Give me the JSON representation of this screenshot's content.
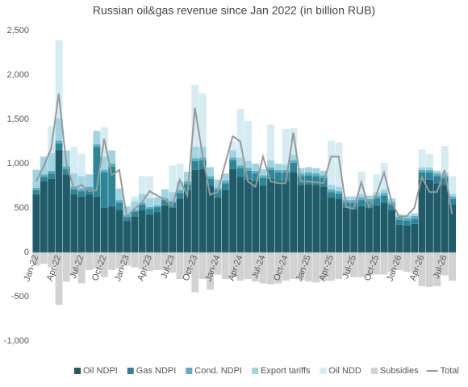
{
  "chart_data": {
    "type": "stacked-bar-line",
    "title": "Russian oil&gas revenue since Jan 2022 (in billion RUB)",
    "categories": [
      "Jan-22",
      null,
      null,
      "Apr-22",
      null,
      null,
      "Jul-22",
      null,
      null,
      "Oct-22",
      null,
      null,
      "Jan-23",
      null,
      null,
      "Apr-23",
      null,
      null,
      "Jul-23",
      null,
      null,
      "Oct-23",
      null,
      null,
      "Jan-24",
      null,
      null,
      "Apr-24",
      null,
      null,
      "Jul-24",
      null,
      null,
      "Oct-24",
      null,
      null,
      "Jan-25",
      null,
      null,
      "Apr-25",
      null,
      null,
      "Jul-25",
      null,
      null,
      "Oct-25",
      null,
      null,
      "Jan-26",
      null,
      null,
      "Apr-26",
      null,
      null,
      "Jul-26",
      null
    ],
    "ylim": [
      -1000,
      2500
    ],
    "yticks": [
      {
        "value": -1000,
        "label": "-1,000"
      },
      -500,
      0,
      500,
      {
        "value": 1000,
        "label": "1,000"
      },
      {
        "value": 1500,
        "label": "1,500"
      },
      {
        "value": 2000,
        "label": "2,000"
      },
      {
        "value": 2500,
        "label": "2,500"
      }
    ],
    "series": [
      {
        "name": "Oil NDPI",
        "color": "#1f5b68",
        "kind": "bar",
        "values": [
          650,
          800,
          830,
          1150,
          880,
          650,
          630,
          650,
          630,
          500,
          520,
          480,
          350,
          400,
          480,
          430,
          450,
          530,
          500,
          600,
          700,
          930,
          940,
          750,
          620,
          700,
          940,
          850,
          820,
          800,
          750,
          830,
          800,
          800,
          900,
          760,
          770,
          760,
          740,
          620,
          600,
          500,
          490,
          520,
          500,
          530,
          560,
          480,
          310,
          300,
          320,
          820,
          820,
          780,
          760,
          540
        ]
      },
      {
        "name": "Gas NDPI",
        "color": "#2d8697",
        "kind": "bar",
        "values": [
          50,
          50,
          60,
          80,
          60,
          60,
          60,
          60,
          560,
          400,
          450,
          80,
          50,
          60,
          60,
          60,
          60,
          60,
          60,
          70,
          70,
          100,
          100,
          80,
          80,
          80,
          100,
          100,
          100,
          90,
          90,
          100,
          100,
          100,
          110,
          100,
          100,
          100,
          100,
          60,
          60,
          60,
          70,
          70,
          70,
          80,
          80,
          60,
          60,
          60,
          60,
          80,
          80,
          80,
          80,
          60
        ]
      },
      {
        "name": "Cond. NDPI",
        "color": "#5badbf",
        "kind": "bar",
        "values": [
          30,
          30,
          30,
          30,
          30,
          30,
          30,
          30,
          30,
          30,
          30,
          30,
          20,
          20,
          20,
          20,
          20,
          20,
          20,
          30,
          30,
          30,
          30,
          30,
          30,
          30,
          30,
          30,
          30,
          30,
          30,
          30,
          30,
          30,
          30,
          30,
          30,
          30,
          30,
          30,
          30,
          30,
          30,
          30,
          30,
          30,
          30,
          30,
          30,
          30,
          30,
          30,
          30,
          30,
          30,
          30
        ]
      },
      {
        "name": "Export tariffs",
        "color": "#a0d4e1",
        "kind": "bar",
        "values": [
          200,
          200,
          200,
          250,
          180,
          150,
          140,
          140,
          150,
          150,
          150,
          130,
          100,
          100,
          100,
          100,
          90,
          100,
          100,
          100,
          110,
          130,
          120,
          100,
          90,
          80,
          80,
          90,
          80,
          80,
          70,
          80,
          70,
          60,
          60,
          60,
          60,
          60,
          50,
          50,
          50,
          40,
          40,
          40,
          40,
          40,
          40,
          40,
          30,
          30,
          30,
          30,
          30,
          30,
          30,
          30
        ]
      },
      {
        "name": "Oil NDD",
        "color": "#d4ecf2",
        "kind": "bar",
        "values": [
          0,
          0,
          300,
          880,
          0,
          300,
          250,
          0,
          0,
          330,
          0,
          0,
          0,
          50,
          200,
          250,
          0,
          0,
          300,
          200,
          0,
          700,
          600,
          0,
          0,
          0,
          100,
          550,
          450,
          0,
          0,
          400,
          0,
          400,
          300,
          0,
          0,
          0,
          0,
          500,
          500,
          0,
          0,
          250,
          0,
          200,
          300,
          0,
          0,
          0,
          0,
          200,
          150,
          0,
          300,
          200
        ]
      },
      {
        "name": "Subsidies",
        "color": "#d2d2d2",
        "kind": "bar",
        "values": [
          -150,
          -130,
          -170,
          -590,
          -330,
          -250,
          -350,
          -200,
          -180,
          -280,
          -200,
          -180,
          -150,
          -170,
          -190,
          -210,
          -200,
          -200,
          -230,
          -300,
          -250,
          -450,
          -300,
          -420,
          -250,
          -300,
          -280,
          -320,
          -300,
          -330,
          -350,
          -360,
          -350,
          -320,
          -300,
          -310,
          -330,
          -340,
          -320,
          -320,
          -300,
          -250,
          -280,
          -280,
          -260,
          -250,
          -250,
          -220,
          -200,
          -220,
          -230,
          -380,
          -390,
          -380,
          -260,
          -320
        ]
      },
      {
        "name": "Total",
        "color": "#999999",
        "kind": "line",
        "values": [
          800,
          970,
          1170,
          1790,
          1000,
          720,
          760,
          690,
          700,
          1280,
          870,
          930,
          400,
          490,
          560,
          690,
          640,
          600,
          520,
          820,
          640,
          1630,
          1100,
          650,
          680,
          1000,
          1310,
          1250,
          800,
          740,
          1080,
          800,
          780,
          780,
          1350,
          800,
          800,
          790,
          780,
          1080,
          1080,
          510,
          490,
          790,
          510,
          650,
          900,
          570,
          400,
          410,
          500,
          850,
          680,
          680,
          930,
          430
        ]
      }
    ]
  }
}
